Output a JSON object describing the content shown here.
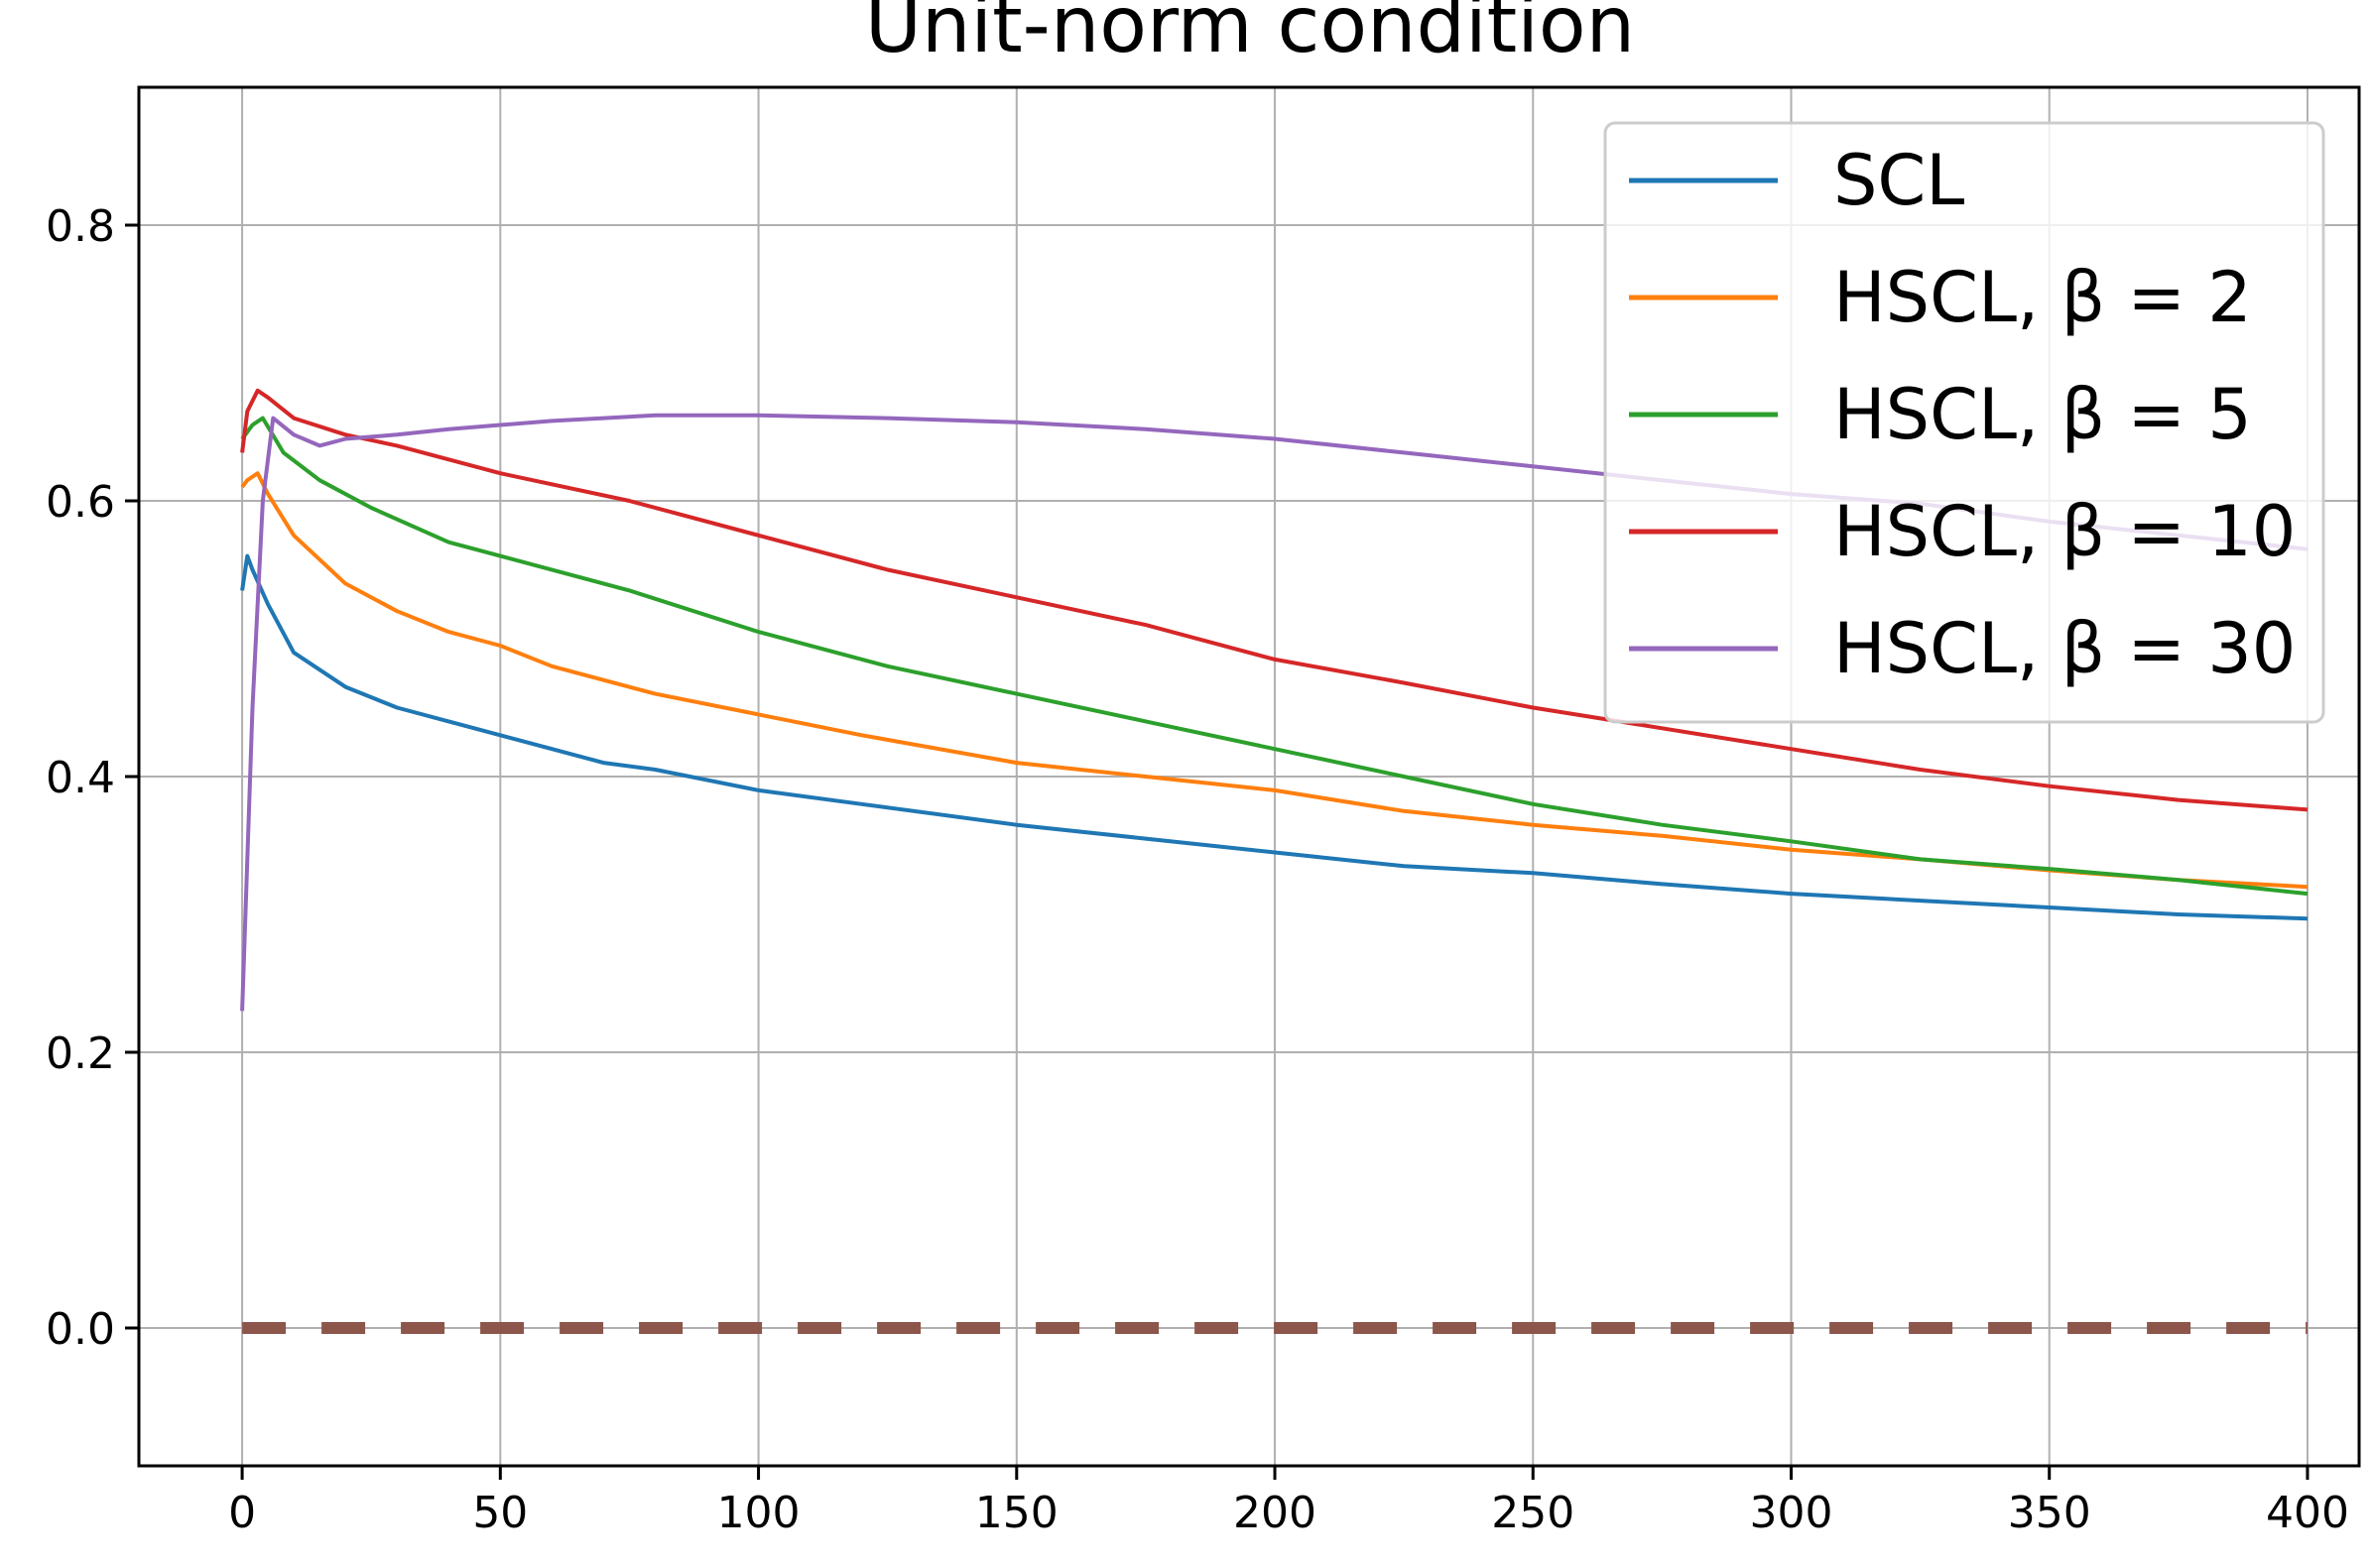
{
  "chart_data": {
    "type": "line",
    "title": "Unit-norm condition",
    "xlabel": "",
    "ylabel": "",
    "xlim": [
      -20,
      410
    ],
    "ylim": [
      -0.1,
      0.9
    ],
    "xticks": [
      0,
      50,
      100,
      150,
      200,
      250,
      300,
      350,
      400
    ],
    "yticks": [
      0.0,
      0.2,
      0.4,
      0.6,
      0.8
    ],
    "xtick_labels": [
      "0",
      "50",
      "100",
      "150",
      "200",
      "250",
      "300",
      "350",
      "400"
    ],
    "ytick_labels": [
      "0.0",
      "0.2",
      "0.4",
      "0.6",
      "0.8"
    ],
    "grid": true,
    "legend_position": "top-right",
    "series": [
      {
        "name": "SCL",
        "color": "#1f77b4",
        "x": [
          0,
          1,
          2,
          5,
          10,
          20,
          30,
          40,
          50,
          60,
          70,
          80,
          100,
          120,
          150,
          175,
          200,
          225,
          250,
          275,
          300,
          325,
          350,
          375,
          400
        ],
        "y": [
          0.535,
          0.56,
          0.55,
          0.525,
          0.49,
          0.465,
          0.45,
          0.44,
          0.43,
          0.42,
          0.41,
          0.405,
          0.39,
          0.38,
          0.365,
          0.355,
          0.345,
          0.335,
          0.33,
          0.322,
          0.315,
          0.31,
          0.305,
          0.3,
          0.297
        ]
      },
      {
        "name": "HSCL, β = 2",
        "color": "#ff7f0e",
        "x": [
          0,
          1,
          3,
          5,
          10,
          20,
          30,
          40,
          50,
          60,
          70,
          80,
          100,
          120,
          150,
          175,
          200,
          225,
          250,
          275,
          300,
          325,
          350,
          375,
          400
        ],
        "y": [
          0.61,
          0.615,
          0.62,
          0.605,
          0.575,
          0.54,
          0.52,
          0.505,
          0.495,
          0.48,
          0.47,
          0.46,
          0.445,
          0.43,
          0.41,
          0.4,
          0.39,
          0.375,
          0.365,
          0.357,
          0.347,
          0.34,
          0.332,
          0.325,
          0.32
        ]
      },
      {
        "name": "HSCL, β = 5",
        "color": "#2ca02c",
        "x": [
          0,
          2,
          4,
          8,
          15,
          25,
          40,
          50,
          75,
          100,
          125,
          150,
          175,
          200,
          225,
          250,
          275,
          300,
          325,
          350,
          375,
          400
        ],
        "y": [
          0.645,
          0.655,
          0.66,
          0.635,
          0.615,
          0.595,
          0.57,
          0.56,
          0.535,
          0.505,
          0.48,
          0.46,
          0.44,
          0.42,
          0.4,
          0.38,
          0.365,
          0.353,
          0.34,
          0.333,
          0.325,
          0.315
        ]
      },
      {
        "name": "HSCL, β = 10",
        "color": "#d62728",
        "x": [
          0,
          1,
          3,
          5,
          10,
          20,
          30,
          40,
          50,
          75,
          100,
          125,
          150,
          175,
          200,
          225,
          250,
          275,
          300,
          325,
          350,
          375,
          400
        ],
        "y": [
          0.635,
          0.665,
          0.68,
          0.675,
          0.66,
          0.648,
          0.64,
          0.63,
          0.62,
          0.6,
          0.575,
          0.55,
          0.53,
          0.51,
          0.485,
          0.468,
          0.45,
          0.435,
          0.42,
          0.405,
          0.393,
          0.383,
          0.376
        ]
      },
      {
        "name": "HSCL, β = 30",
        "color": "#9467bd",
        "x": [
          0,
          2,
          4,
          6,
          10,
          15,
          20,
          30,
          40,
          50,
          60,
          70,
          80,
          100,
          125,
          150,
          175,
          200,
          225,
          250,
          275,
          300,
          325,
          350,
          375,
          400
        ],
        "y": [
          0.23,
          0.45,
          0.6,
          0.66,
          0.648,
          0.64,
          0.645,
          0.648,
          0.652,
          0.655,
          0.658,
          0.66,
          0.662,
          0.662,
          0.66,
          0.657,
          0.652,
          0.645,
          0.635,
          0.625,
          0.615,
          0.605,
          0.598,
          0.585,
          0.575,
          0.565
        ]
      },
      {
        "name": "",
        "color": "#8c564b",
        "dashed": true,
        "x": [
          0,
          400
        ],
        "y": [
          0.0,
          0.0
        ]
      }
    ]
  }
}
